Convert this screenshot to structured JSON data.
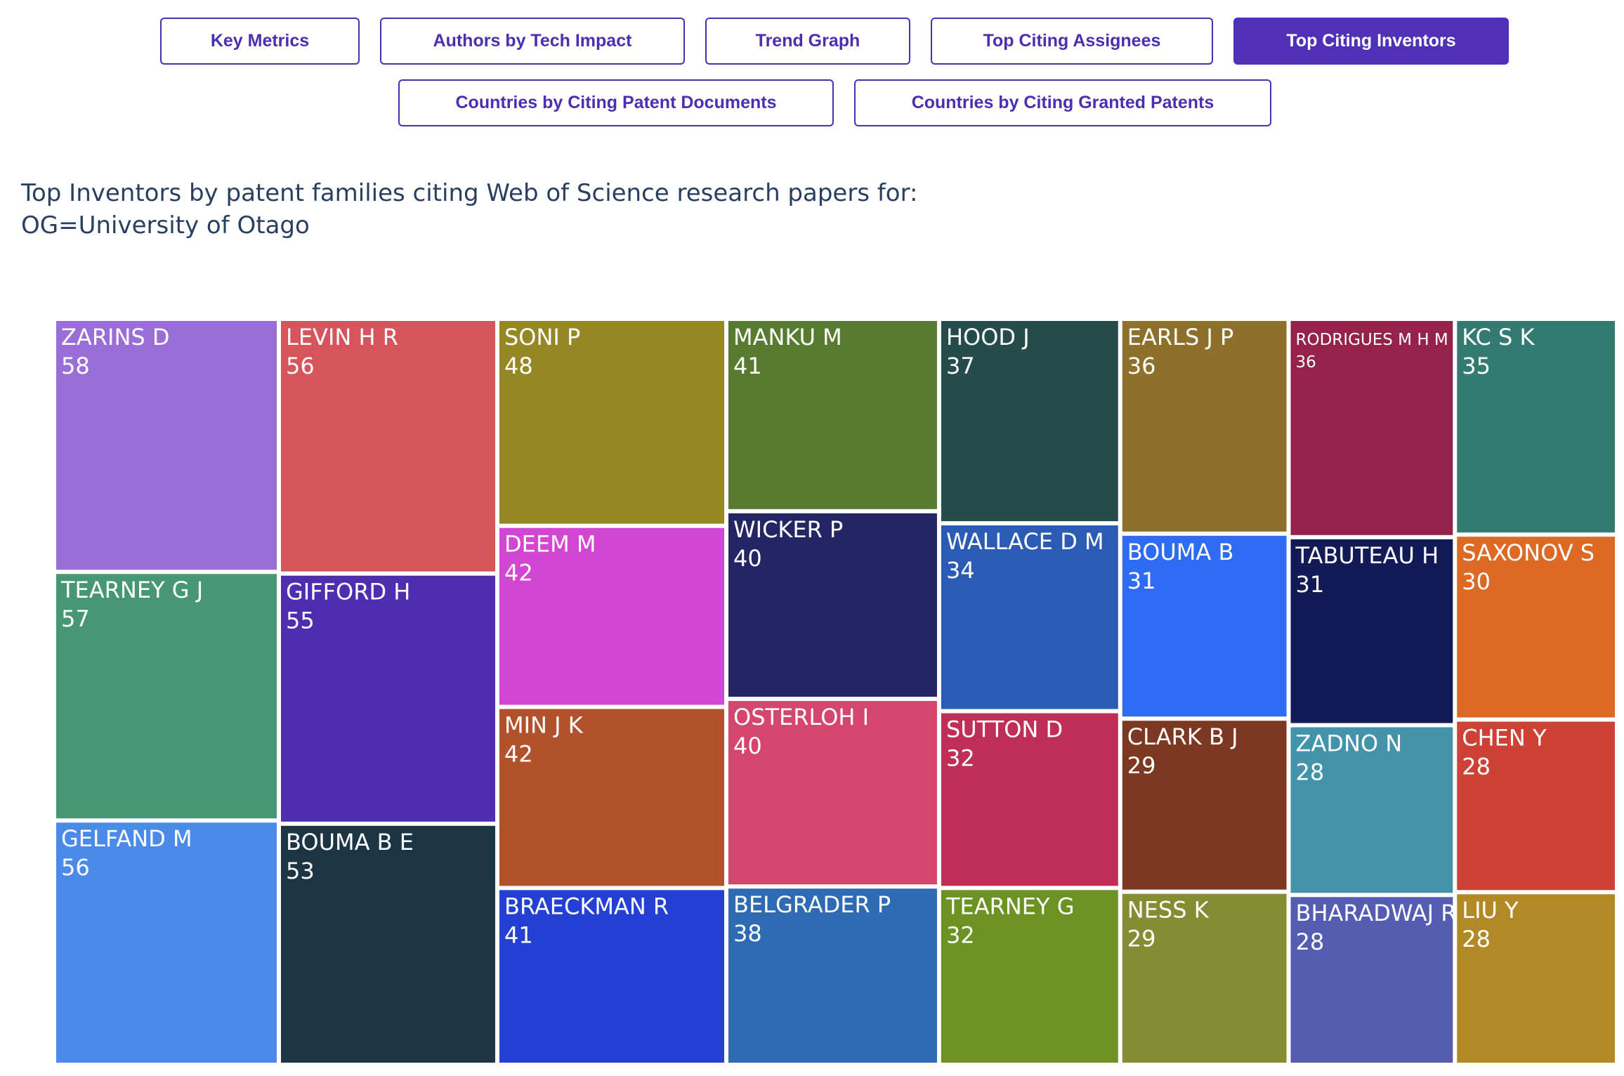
{
  "tabs": [
    {
      "label": "Key Metrics",
      "active": false
    },
    {
      "label": "Authors by Tech Impact",
      "active": false
    },
    {
      "label": "Trend Graph",
      "active": false
    },
    {
      "label": "Top Citing Assignees",
      "active": false
    },
    {
      "label": "Top Citing Inventors",
      "active": true
    },
    {
      "label": "Countries by Citing Patent Documents",
      "active": false
    },
    {
      "label": "Countries by Citing Granted Patents",
      "active": false
    }
  ],
  "chart_data": {
    "type": "treemap",
    "title": "Top Inventors by patent families citing Web of Science research papers for:\nOG=University of Otago",
    "items": [
      {
        "label": "ZARINS D",
        "value": 58,
        "color": "#9b6dd7"
      },
      {
        "label": "TEARNEY G J",
        "value": 57,
        "color": "#479674"
      },
      {
        "label": "GELFAND M",
        "value": 56,
        "color": "#4a8ae8"
      },
      {
        "label": "LEVIN H R",
        "value": 56,
        "color": "#d6555c"
      },
      {
        "label": "GIFFORD H",
        "value": 55,
        "color": "#4f2db1"
      },
      {
        "label": "BOUMA B E",
        "value": 53,
        "color": "#1b3545"
      },
      {
        "label": "SONI P",
        "value": 48,
        "color": "#958824"
      },
      {
        "label": "DEEM M",
        "value": 42,
        "color": "#d346d2"
      },
      {
        "label": "MIN J K",
        "value": 42,
        "color": "#b2522d"
      },
      {
        "label": "BRAECKMAN R",
        "value": 41,
        "color": "#243fd3"
      },
      {
        "label": "MANKU M",
        "value": 41,
        "color": "#577b31"
      },
      {
        "label": "WICKER P",
        "value": 40,
        "color": "#232565"
      },
      {
        "label": "OSTERLOH I",
        "value": 40,
        "color": "#d5466f"
      },
      {
        "label": "BELGRADER P",
        "value": 38,
        "color": "#2e6bb3"
      },
      {
        "label": "HOOD J",
        "value": 37,
        "color": "#254b4a"
      },
      {
        "label": "EARLS J P",
        "value": 36,
        "color": "#8d712b"
      },
      {
        "label": "RODRIGUES M H M",
        "value": 36,
        "color": "#94224b"
      },
      {
        "label": "KC S K",
        "value": 35,
        "color": "#337b71"
      },
      {
        "label": "WALLACE D M",
        "value": 34,
        "color": "#2c5bb5"
      },
      {
        "label": "SUTTON D",
        "value": 32,
        "color": "#bf2e56"
      },
      {
        "label": "TEARNEY G",
        "value": 32,
        "color": "#6b9222"
      },
      {
        "label": "BOUMA B",
        "value": 31,
        "color": "#2e6cf3"
      },
      {
        "label": "CLARK B J",
        "value": 29,
        "color": "#7d3821"
      },
      {
        "label": "NESS K",
        "value": 29,
        "color": "#858c31"
      },
      {
        "label": "TABUTEAU H",
        "value": 31,
        "color": "#131b57"
      },
      {
        "label": "ZADNO N",
        "value": 28,
        "color": "#4393aa"
      },
      {
        "label": "BHARADWAJ R",
        "value": 28,
        "color": "#545db1"
      },
      {
        "label": "SAXONOV S",
        "value": 30,
        "color": "#dc6a25"
      },
      {
        "label": "CHEN Y",
        "value": 28,
        "color": "#ce4135"
      },
      {
        "label": "LIU Y",
        "value": 28,
        "color": "#b28925"
      }
    ]
  }
}
